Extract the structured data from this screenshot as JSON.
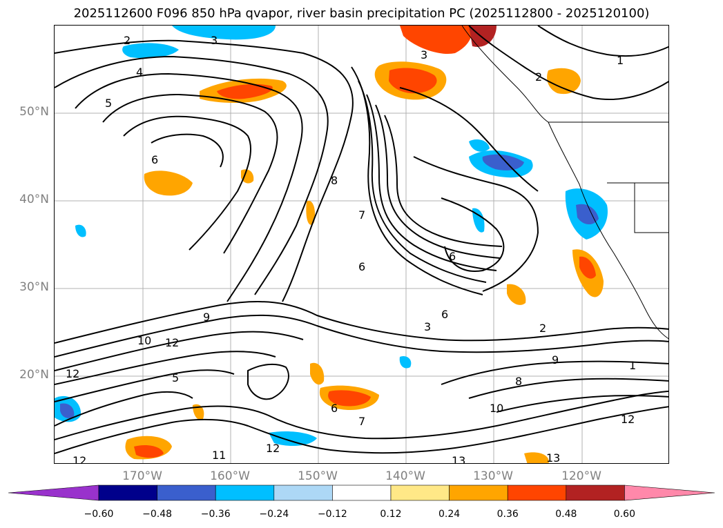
{
  "title": "2025112600 F096 850 hPa qvapor, river basin precipitation PC (2025112800 - 2025120100)",
  "lat_labels": [
    "50°N",
    "40°N",
    "30°N",
    "20°N"
  ],
  "lon_labels": [
    "170°W",
    "160°W",
    "150°W",
    "140°W",
    "130°W",
    "120°W"
  ],
  "contour_labels": [
    "2",
    "3",
    "4",
    "5",
    "6",
    "7",
    "8",
    "9",
    "10",
    "11",
    "12",
    "13",
    "1"
  ],
  "colorbar": {
    "ticks": [
      "−0.60",
      "−0.48",
      "−0.36",
      "−0.24",
      "−0.12",
      "0.12",
      "0.24",
      "0.36",
      "0.48",
      "0.60"
    ],
    "colors": [
      "#9932cc",
      "#00008b",
      "#3a5fcd",
      "#00bfff",
      "#add8f6",
      "#ffffff",
      "#ffe887",
      "#ffa500",
      "#ff4500",
      "#b22222",
      "#ff88aa"
    ]
  }
}
